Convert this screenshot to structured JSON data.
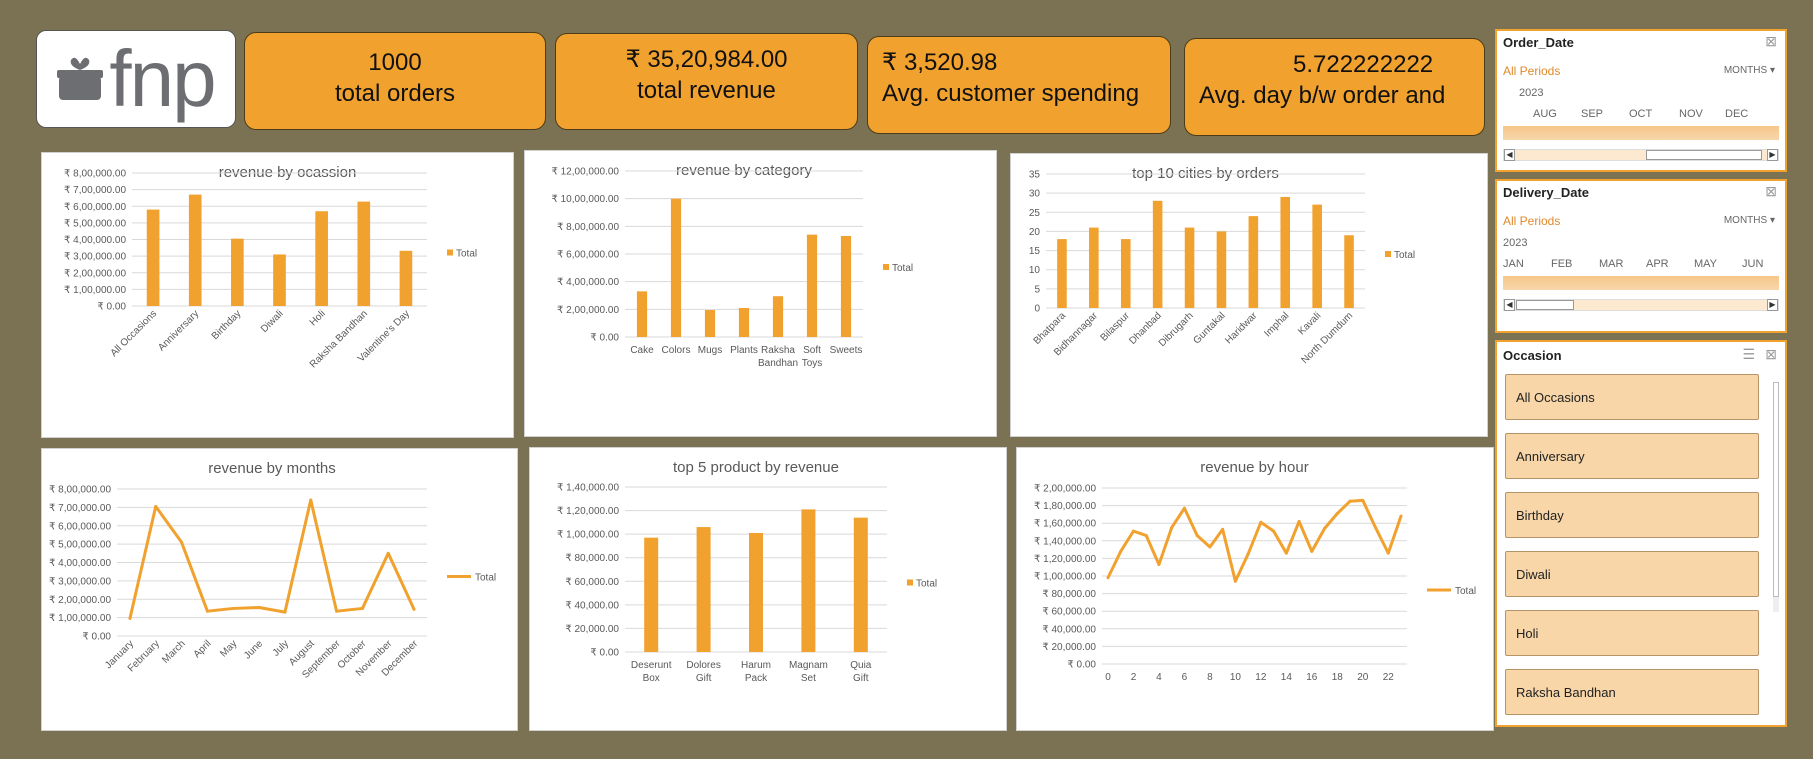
{
  "logo": {
    "text": "fnp"
  },
  "kpis": [
    {
      "value": "1000",
      "label": "total orders"
    },
    {
      "value": "₹ 35,20,984.00",
      "label": "total revenue"
    },
    {
      "value": "₹ 3,520.98",
      "label": "Avg. customer spending"
    },
    {
      "value": "5.722222222",
      "label": "Avg. day b/w order and"
    }
  ],
  "colors": {
    "accent": "#f0a12e",
    "background": "#7a7252",
    "slicer_item": "#f8d6a8"
  },
  "slicers": {
    "order_date": {
      "title": "Order_Date",
      "all_periods": "All Periods",
      "unit": "MONTHS",
      "year": "2023",
      "months": [
        "AUG",
        "SEP",
        "OCT",
        "NOV",
        "DEC"
      ]
    },
    "delivery_date": {
      "title": "Delivery_Date",
      "all_periods": "All Periods",
      "unit": "MONTHS",
      "year": "2023",
      "months": [
        "JAN",
        "FEB",
        "MAR",
        "APR",
        "MAY",
        "JUN"
      ]
    },
    "occasion": {
      "title": "Occasion",
      "items": [
        "All Occasions",
        "Anniversary",
        "Birthday",
        "Diwali",
        "Holi",
        "Raksha Bandhan"
      ]
    }
  },
  "chart_data": [
    {
      "type": "bar",
      "title": "revenue by ocassion",
      "legend": "Total",
      "legend_position": "right",
      "categories": [
        "All Occasions",
        "Anniversary",
        "Birthday",
        "Diwali",
        "Holi",
        "Raksha Bandhan",
        "Valentine's Day"
      ],
      "values": [
        580000,
        670000,
        405000,
        310000,
        570000,
        628000,
        332000
      ],
      "ylim": [
        0,
        800000
      ],
      "yticks": [
        "₹ 0.00",
        "₹ 1,00,000.00",
        "₹ 2,00,000.00",
        "₹ 3,00,000.00",
        "₹ 4,00,000.00",
        "₹ 5,00,000.00",
        "₹ 6,00,000.00",
        "₹ 7,00,000.00",
        "₹ 8,00,000.00"
      ],
      "rotate_labels": true
    },
    {
      "type": "bar",
      "title": "revenue by category",
      "legend": "Total",
      "legend_position": "right",
      "categories": [
        "Cake",
        "Colors",
        "Mugs",
        "Plants",
        "Raksha Bandhan",
        "Soft Toys",
        "Sweets"
      ],
      "values": [
        330000,
        1000000,
        195000,
        210000,
        295000,
        740000,
        730000
      ],
      "ylim": [
        0,
        1200000
      ],
      "yticks": [
        "₹ 0.00",
        "₹ 2,00,000.00",
        "₹ 4,00,000.00",
        "₹ 6,00,000.00",
        "₹ 8,00,000.00",
        "₹ 10,00,000.00",
        "₹ 12,00,000.00"
      ],
      "rotate_labels": false
    },
    {
      "type": "bar",
      "title": "top 10 cities by orders",
      "legend": "Total",
      "legend_position": "right",
      "categories": [
        "Bhatpara",
        "Bidhannagar",
        "Bilaspur",
        "Dhanbad",
        "Dibrugarh",
        "Guntakal",
        "Haridwar",
        "Imphal",
        "Kavali",
        "North Dumdum"
      ],
      "values": [
        18,
        21,
        18,
        28,
        21,
        20,
        24,
        29,
        27,
        19
      ],
      "ylim": [
        0,
        35
      ],
      "yticks": [
        "0",
        "5",
        "10",
        "15",
        "20",
        "25",
        "30",
        "35"
      ],
      "rotate_labels": true
    },
    {
      "type": "line",
      "title": "revenue by months",
      "legend": "Total",
      "legend_position": "right",
      "categories": [
        "January",
        "February",
        "March",
        "April",
        "May",
        "June",
        "July",
        "August",
        "September",
        "October",
        "November",
        "December"
      ],
      "values": [
        95000,
        705000,
        510000,
        135000,
        150000,
        155000,
        130000,
        740000,
        135000,
        150000,
        450000,
        145000
      ],
      "ylim": [
        0,
        800000
      ],
      "yticks": [
        "₹ 0.00",
        "₹ 1,00,000.00",
        "₹ 2,00,000.00",
        "₹ 3,00,000.00",
        "₹ 4,00,000.00",
        "₹ 5,00,000.00",
        "₹ 6,00,000.00",
        "₹ 7,00,000.00",
        "₹ 8,00,000.00"
      ],
      "rotate_labels": true
    },
    {
      "type": "bar",
      "title": "top 5 product by revenue",
      "legend": "Total",
      "legend_position": "right",
      "categories": [
        "Deserunt Box",
        "Dolores Gift",
        "Harum Pack",
        "Magnam Set",
        "Quia Gift"
      ],
      "values": [
        97000,
        106000,
        101000,
        121000,
        114000
      ],
      "ylim": [
        0,
        140000
      ],
      "yticks": [
        "₹ 0.00",
        "₹ 20,000.00",
        "₹ 40,000.00",
        "₹ 60,000.00",
        "₹ 80,000.00",
        "₹ 1,00,000.00",
        "₹ 1,20,000.00",
        "₹ 1,40,000.00"
      ],
      "rotate_labels": false
    },
    {
      "type": "line",
      "title": "revenue by hour",
      "legend": "Total",
      "legend_position": "right",
      "x": [
        0,
        1,
        2,
        3,
        4,
        5,
        6,
        7,
        8,
        9,
        10,
        11,
        12,
        13,
        14,
        15,
        16,
        17,
        18,
        19,
        20,
        21,
        22,
        23
      ],
      "values": [
        98000,
        128000,
        151000,
        146000,
        113000,
        155000,
        177000,
        146000,
        133000,
        153000,
        94000,
        125000,
        161000,
        151000,
        126000,
        162000,
        128000,
        154000,
        171000,
        185000,
        186000,
        155000,
        126000,
        168000
      ],
      "xticks": [
        "0",
        "2",
        "4",
        "6",
        "8",
        "10",
        "12",
        "14",
        "16",
        "18",
        "20",
        "22"
      ],
      "ylim": [
        0,
        200000
      ],
      "yticks": [
        "₹ 0.00",
        "₹ 20,000.00",
        "₹ 40,000.00",
        "₹ 60,000.00",
        "₹ 80,000.00",
        "₹ 1,00,000.00",
        "₹ 1,20,000.00",
        "₹ 1,40,000.00",
        "₹ 1,60,000.00",
        "₹ 1,80,000.00",
        "₹ 2,00,000.00"
      ],
      "rotate_labels": false
    }
  ]
}
